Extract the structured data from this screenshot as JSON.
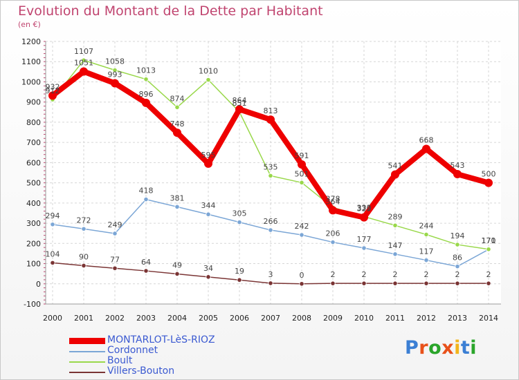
{
  "title": "Evolution du Montant de la Dette par Habitant",
  "subtitle": "(en €)",
  "logo": "Proxiti",
  "chart_data": {
    "type": "line",
    "x": [
      "2000",
      "2001",
      "2002",
      "2003",
      "2004",
      "2005",
      "2006",
      "2007",
      "2008",
      "2009",
      "2010",
      "2011",
      "2012",
      "2013",
      "2014"
    ],
    "ylim": [
      -100,
      1200
    ],
    "yticks": [
      -100,
      0,
      100,
      200,
      300,
      400,
      500,
      600,
      700,
      800,
      900,
      1000,
      1100,
      1200
    ],
    "grid": true,
    "legend": "bottom-left",
    "series": [
      {
        "name": "MONTARLOT-LèS-RIOZ",
        "color": "#ee0000",
        "width": 8,
        "values": [
          932,
          1051,
          993,
          896,
          748,
          595,
          864,
          813,
          591,
          364,
          329,
          541,
          668,
          543,
          500
        ]
      },
      {
        "name": "Cordonnet",
        "color": "#7ba6d6",
        "width": 1.5,
        "values": [
          294,
          272,
          249,
          418,
          381,
          344,
          305,
          266,
          242,
          206,
          177,
          147,
          117,
          86,
          170
        ]
      },
      {
        "name": "Boult",
        "color": "#99d84a",
        "width": 1.5,
        "values": [
          912,
          1107,
          1058,
          1013,
          874,
          1010,
          851,
          535,
          501,
          378,
          333,
          289,
          244,
          194,
          171
        ]
      },
      {
        "name": "Villers-Bouton",
        "color": "#7a3434",
        "width": 1.5,
        "values": [
          104,
          90,
          77,
          64,
          49,
          34,
          19,
          3,
          0,
          2,
          2,
          2,
          2,
          2,
          2
        ]
      }
    ]
  }
}
